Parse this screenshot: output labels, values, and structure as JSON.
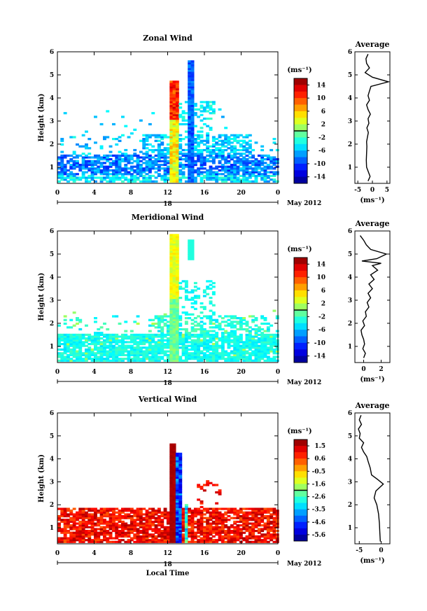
{
  "chart_data": [
    {
      "type": "heatmap",
      "title": "Zonal Wind",
      "xlabel": "",
      "ylabel": "Height (km)",
      "colorbar_unit": "(ms⁻¹)",
      "colorbar_ticks": [
        "14",
        "10",
        "6",
        "2",
        "-2",
        "-6",
        "-10",
        "-14"
      ],
      "clim": [
        -16,
        16
      ],
      "xticks": [
        "0",
        "4",
        "8",
        "12",
        "16",
        "20",
        "0"
      ],
      "yticks": [
        "1",
        "2",
        "3",
        "4",
        "5",
        "6"
      ],
      "xlim": [
        0,
        24
      ],
      "ylim": [
        0.3,
        6
      ],
      "date_marker": "18",
      "date_label": "May 2012",
      "profile": {
        "title": "Average",
        "xlabel": "(ms⁻¹)",
        "xticks": [
          "-5",
          "0",
          "5"
        ],
        "xlim": [
          -6,
          6
        ],
        "yticks": [
          "1",
          "2",
          "3",
          "4",
          "5",
          "6"
        ],
        "points": [
          [
            -1.5,
            0.4
          ],
          [
            -0.8,
            0.6
          ],
          [
            -1.4,
            0.8
          ],
          [
            -2.0,
            1.0
          ],
          [
            -2.1,
            1.3
          ],
          [
            -2.0,
            1.6
          ],
          [
            -1.9,
            1.9
          ],
          [
            -2.0,
            2.1
          ],
          [
            -1.7,
            2.3
          ],
          [
            -1.4,
            2.5
          ],
          [
            -1.9,
            2.7
          ],
          [
            -1.2,
            2.9
          ],
          [
            -1.5,
            3.1
          ],
          [
            -0.7,
            3.3
          ],
          [
            -1.5,
            3.5
          ],
          [
            -2.0,
            3.7
          ],
          [
            -1.0,
            3.9
          ],
          [
            -1.5,
            4.1
          ],
          [
            -1.0,
            4.3
          ],
          [
            -0.5,
            4.5
          ],
          [
            5.5,
            4.7
          ],
          [
            0.0,
            4.9
          ],
          [
            -2.5,
            5.1
          ],
          [
            -1.0,
            5.3
          ],
          [
            -2.0,
            5.5
          ],
          [
            -2.2,
            5.7
          ],
          [
            -1.5,
            5.9
          ]
        ]
      }
    },
    {
      "type": "heatmap",
      "title": "Meridional Wind",
      "xlabel": "",
      "ylabel": "Height (km)",
      "colorbar_unit": "(ms⁻¹)",
      "colorbar_ticks": [
        "14",
        "10",
        "6",
        "2",
        "-2",
        "-6",
        "-10",
        "-14"
      ],
      "clim": [
        -16,
        16
      ],
      "xticks": [
        "0",
        "4",
        "8",
        "12",
        "16",
        "20",
        "0"
      ],
      "yticks": [
        "1",
        "2",
        "3",
        "4",
        "5",
        "6"
      ],
      "xlim": [
        0,
        24
      ],
      "ylim": [
        0.3,
        6
      ],
      "date_marker": "18",
      "date_label": "May 2012",
      "profile": {
        "title": "Average",
        "xlabel": "(ms⁻¹)",
        "xticks": [
          "0",
          "2"
        ],
        "xlim": [
          -1,
          3
        ],
        "yticks": [
          "1",
          "2",
          "3",
          "4",
          "5",
          "6"
        ],
        "points": [
          [
            0.0,
            0.5
          ],
          [
            0.2,
            0.7
          ],
          [
            -0.1,
            0.9
          ],
          [
            0.1,
            1.1
          ],
          [
            0.0,
            1.3
          ],
          [
            -0.2,
            1.5
          ],
          [
            -0.3,
            1.7
          ],
          [
            0.1,
            1.9
          ],
          [
            -0.1,
            2.1
          ],
          [
            0.3,
            2.3
          ],
          [
            0.2,
            2.5
          ],
          [
            0.6,
            2.7
          ],
          [
            0.4,
            2.9
          ],
          [
            0.8,
            3.1
          ],
          [
            0.5,
            3.3
          ],
          [
            1.0,
            3.5
          ],
          [
            0.6,
            3.7
          ],
          [
            1.2,
            3.9
          ],
          [
            0.8,
            4.1
          ],
          [
            1.6,
            4.3
          ],
          [
            1.0,
            4.5
          ],
          [
            2.0,
            4.6
          ],
          [
            -0.2,
            4.7
          ],
          [
            1.5,
            4.8
          ],
          [
            2.6,
            5.0
          ],
          [
            0.8,
            5.2
          ],
          [
            0.3,
            5.4
          ],
          [
            0.0,
            5.6
          ],
          [
            -0.4,
            5.8
          ]
        ]
      }
    },
    {
      "type": "heatmap",
      "title": "Vertical Wind",
      "xlabel": "Local Time",
      "ylabel": "Height (km)",
      "colorbar_unit": "(ms⁻¹)",
      "colorbar_ticks": [
        "1.5",
        "0.6",
        "-0.5",
        "-1.6",
        "-2.6",
        "-3.5",
        "-4.6",
        "-5.6"
      ],
      "clim": [
        -6,
        2
      ],
      "xticks": [
        "0",
        "4",
        "8",
        "12",
        "16",
        "20",
        "0"
      ],
      "yticks": [
        "1",
        "2",
        "3",
        "4",
        "5",
        "6"
      ],
      "xlim": [
        0,
        24
      ],
      "ylim": [
        0.3,
        6
      ],
      "date_marker": "18",
      "date_label": "May 2012",
      "profile": {
        "title": "Average",
        "xlabel": "(ms⁻¹)",
        "xticks": [
          "-5",
          "0"
        ],
        "xlim": [
          -6,
          2
        ],
        "yticks": [
          "1",
          "2",
          "3",
          "4",
          "5",
          "6"
        ],
        "points": [
          [
            -0.2,
            0.4
          ],
          [
            -0.3,
            0.8
          ],
          [
            -0.4,
            1.2
          ],
          [
            -0.6,
            1.6
          ],
          [
            -1.0,
            2.0
          ],
          [
            -1.6,
            2.3
          ],
          [
            -1.2,
            2.6
          ],
          [
            0.5,
            2.9
          ],
          [
            -0.8,
            3.1
          ],
          [
            -2.2,
            3.3
          ],
          [
            -2.5,
            3.6
          ],
          [
            -3.0,
            3.9
          ],
          [
            -3.3,
            4.1
          ],
          [
            -4.0,
            4.3
          ],
          [
            -4.5,
            4.5
          ],
          [
            -4.0,
            4.7
          ],
          [
            -5.0,
            4.9
          ],
          [
            -4.8,
            5.1
          ],
          [
            -5.2,
            5.3
          ],
          [
            -4.5,
            5.5
          ],
          [
            -5.0,
            5.7
          ],
          [
            -4.6,
            5.9
          ]
        ]
      }
    }
  ]
}
